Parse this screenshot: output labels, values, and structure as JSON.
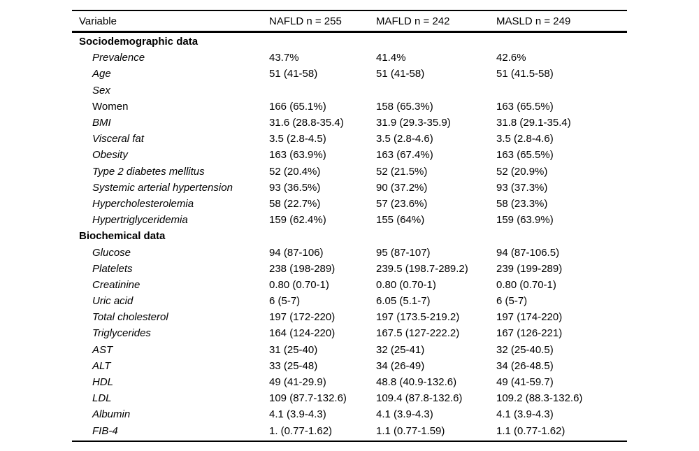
{
  "table": {
    "headers": [
      "Variable",
      "NAFLD n = 255",
      "MAFLD n = 242",
      "MASLD n = 249"
    ],
    "sections": [
      {
        "title": "Sociodemographic data",
        "rows": [
          {
            "label": "Prevalence",
            "italic": true,
            "values": [
              "43.7%",
              "41.4%",
              "42.6%"
            ]
          },
          {
            "label": "Age",
            "italic": true,
            "values": [
              "51 (41-58)",
              "51 (41-58)",
              "51 (41.5-58)"
            ]
          },
          {
            "label": "Sex",
            "italic": true,
            "values": [
              "",
              "",
              ""
            ]
          },
          {
            "label": "Women",
            "italic": false,
            "values": [
              "166 (65.1%)",
              "158 (65.3%)",
              "163 (65.5%)"
            ]
          },
          {
            "label": "BMI",
            "italic": true,
            "values": [
              "31.6 (28.8-35.4)",
              "31.9 (29.3-35.9)",
              "31.8 (29.1-35.4)"
            ]
          },
          {
            "label": "Visceral fat",
            "italic": true,
            "values": [
              "3.5 (2.8-4.5)",
              "3.5 (2.8-4.6)",
              "3.5 (2.8-4.6)"
            ]
          },
          {
            "label": "Obesity",
            "italic": true,
            "values": [
              "163 (63.9%)",
              "163 (67.4%)",
              "163 (65.5%)"
            ]
          },
          {
            "label": "Type 2 diabetes mellitus",
            "italic": true,
            "values": [
              "52 (20.4%)",
              "52 (21.5%)",
              "52 (20.9%)"
            ]
          },
          {
            "label": "Systemic arterial hypertension",
            "italic": true,
            "values": [
              "93 (36.5%)",
              "90 (37.2%)",
              "93 (37.3%)"
            ]
          },
          {
            "label": "Hypercholesterolemia",
            "italic": true,
            "values": [
              "58 (22.7%)",
              "57 (23.6%)",
              "58 (23.3%)"
            ]
          },
          {
            "label": "Hypertriglyceridemia",
            "italic": true,
            "values": [
              "159 (62.4%)",
              "155 (64%)",
              "159 (63.9%)"
            ]
          }
        ]
      },
      {
        "title": "Biochemical data",
        "rows": [
          {
            "label": "Glucose",
            "italic": true,
            "values": [
              "94 (87-106)",
              "95 (87-107)",
              "94 (87-106.5)"
            ]
          },
          {
            "label": "Platelets",
            "italic": true,
            "values": [
              "238 (198-289)",
              "239.5 (198.7-289.2)",
              "239 (199-289)"
            ]
          },
          {
            "label": "Creatinine",
            "italic": true,
            "values": [
              "0.80 (0.70-1)",
              "0.80 (0.70-1)",
              "0.80 (0.70-1)"
            ]
          },
          {
            "label": "Uric acid",
            "italic": true,
            "values": [
              "6 (5-7)",
              "6.05 (5.1-7)",
              "6 (5-7)"
            ]
          },
          {
            "label": "Total cholesterol",
            "italic": true,
            "values": [
              "197 (172-220)",
              "197 (173.5-219.2)",
              "197 (174-220)"
            ]
          },
          {
            "label": "Triglycerides",
            "italic": true,
            "values": [
              "164 (124-220)",
              "167.5 (127-222.2)",
              "167 (126-221)"
            ]
          },
          {
            "label": "AST",
            "italic": true,
            "values": [
              "31 (25-40)",
              "32 (25-41)",
              "32 (25-40.5)"
            ]
          },
          {
            "label": "ALT",
            "italic": true,
            "values": [
              "33 (25-48)",
              "34 (26-49)",
              "34 (26-48.5)"
            ]
          },
          {
            "label": "HDL",
            "italic": true,
            "values": [
              "49 (41-29.9)",
              "48.8 (40.9-132.6)",
              "49 (41-59.7)"
            ]
          },
          {
            "label": "LDL",
            "italic": true,
            "values": [
              "109 (87.7-132.6)",
              "109.4 (87.8-132.6)",
              "109.2 (88.3-132.6)"
            ]
          },
          {
            "label": "Albumin",
            "italic": true,
            "values": [
              "4.1 (3.9-4.3)",
              "4.1 (3.9-4.3)",
              "4.1 (3.9-4.3)"
            ]
          },
          {
            "label": "FIB-4",
            "italic": true,
            "values": [
              "1. (0.77-1.62)",
              "1.1 (0.77-1.59)",
              "1.1 (0.77-1.62)"
            ]
          }
        ]
      }
    ],
    "colors": {
      "text": "#000000",
      "background": "#ffffff",
      "rule": "#000000"
    }
  }
}
